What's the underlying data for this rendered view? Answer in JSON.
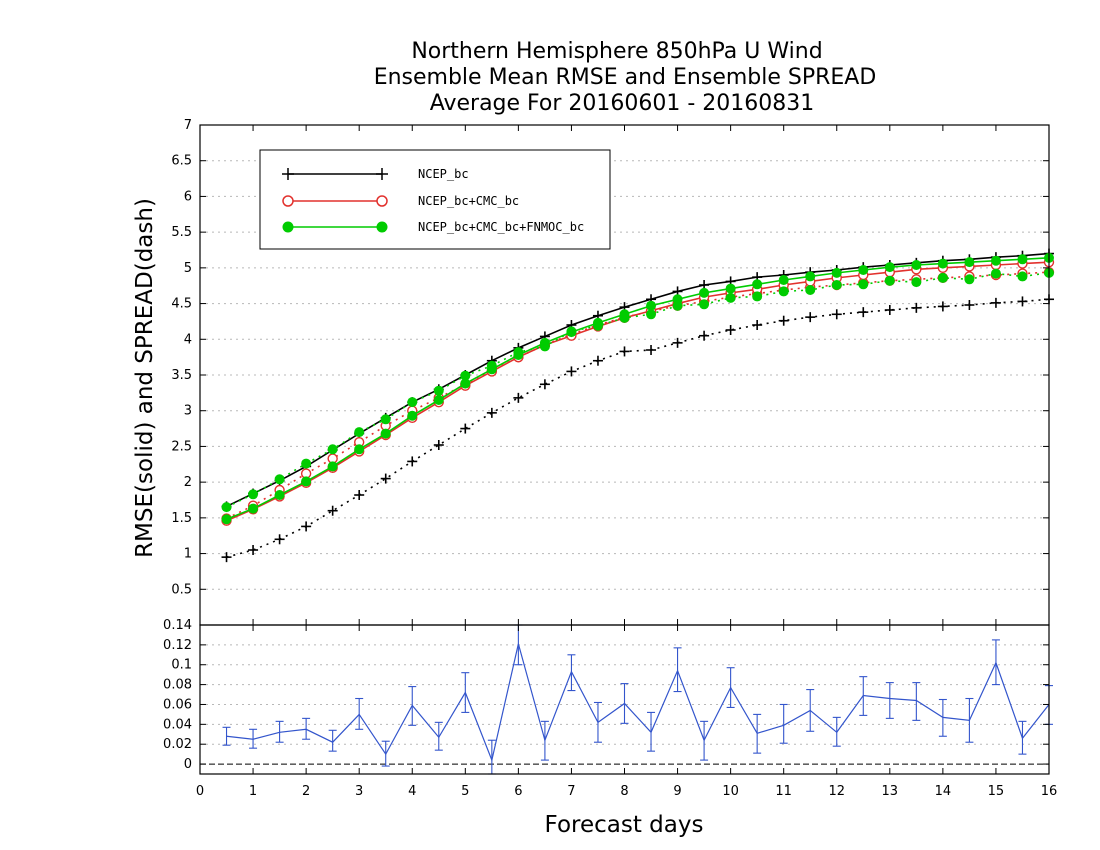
{
  "chart_data": [
    {
      "type": "line",
      "title_lines": [
        "Northern Hemisphere 850hPa U Wind",
        "Ensemble Mean RMSE and Ensemble SPREAD",
        "Average For 20160601 - 20160831"
      ],
      "ylabel": "RMSE(solid) and SPREAD(dash)",
      "xlabel": "Forecast days",
      "xlim": [
        0,
        16
      ],
      "ylim": [
        0,
        7
      ],
      "xticks": [
        "0",
        "1",
        "2",
        "3",
        "4",
        "5",
        "6",
        "7",
        "8",
        "9",
        "10",
        "11",
        "12",
        "13",
        "14",
        "15",
        "16"
      ],
      "yticks": [
        "0.5",
        "1",
        "1.5",
        "2",
        "2.5",
        "3",
        "3.5",
        "4",
        "4.5",
        "5",
        "5.5",
        "6",
        "6.5",
        "7"
      ],
      "grid": true,
      "legend_position": "top-left",
      "x": [
        0.5,
        1,
        1.5,
        2,
        2.5,
        3,
        3.5,
        4,
        4.5,
        5,
        5.5,
        6,
        6.5,
        7,
        7.5,
        8,
        8.5,
        9,
        9.5,
        10,
        10.5,
        11,
        11.5,
        12,
        12.5,
        13,
        13.5,
        14,
        14.5,
        15,
        15.5,
        16
      ],
      "series": [
        {
          "name": "NCEP_bc",
          "color": "#000000",
          "marker": "plus",
          "rmse": [
            1.66,
            1.84,
            2.02,
            2.22,
            2.45,
            2.68,
            2.9,
            3.12,
            3.3,
            3.5,
            3.7,
            3.88,
            4.04,
            4.2,
            4.33,
            4.45,
            4.56,
            4.67,
            4.76,
            4.81,
            4.87,
            4.9,
            4.94,
            4.97,
            5.01,
            5.04,
            5.07,
            5.1,
            5.12,
            5.15,
            5.17,
            5.2
          ],
          "spread": [
            0.95,
            1.05,
            1.2,
            1.38,
            1.6,
            1.82,
            2.05,
            2.29,
            2.52,
            2.75,
            2.97,
            3.18,
            3.37,
            3.55,
            3.7,
            3.83,
            3.85,
            3.95,
            4.05,
            4.13,
            4.2,
            4.26,
            4.31,
            4.35,
            4.38,
            4.41,
            4.44,
            4.46,
            4.48,
            4.51,
            4.53,
            4.56
          ]
        },
        {
          "name": "NCEP_bc+CMC_bc",
          "color": "#e2312d",
          "marker": "circle-open",
          "rmse": [
            1.46,
            1.62,
            1.8,
            1.99,
            2.2,
            2.43,
            2.66,
            2.9,
            3.12,
            3.35,
            3.55,
            3.75,
            3.92,
            4.05,
            4.18,
            4.3,
            4.4,
            4.5,
            4.59,
            4.65,
            4.7,
            4.76,
            4.81,
            4.86,
            4.9,
            4.94,
            4.98,
            5.0,
            5.02,
            5.04,
            5.06,
            5.08
          ],
          "spread": [
            1.49,
            1.67,
            1.89,
            2.12,
            2.33,
            2.56,
            2.79,
            3.0,
            3.18,
            3.37,
            3.56,
            3.75,
            3.92,
            4.07,
            4.2,
            4.31,
            4.39,
            4.47,
            4.53,
            4.59,
            4.64,
            4.69,
            4.73,
            4.76,
            4.79,
            4.82,
            4.84,
            4.86,
            4.88,
            4.9,
            4.92,
            4.94
          ]
        },
        {
          "name": "NCEP_bc+CMC_bc+FNMOC_bc",
          "color": "#00cc00",
          "marker": "circle-filled",
          "rmse": [
            1.48,
            1.63,
            1.82,
            2.01,
            2.22,
            2.46,
            2.68,
            2.93,
            3.15,
            3.38,
            3.58,
            3.78,
            3.95,
            4.1,
            4.23,
            4.35,
            4.47,
            4.56,
            4.65,
            4.71,
            4.77,
            4.83,
            4.88,
            4.93,
            4.97,
            5.01,
            5.04,
            5.06,
            5.08,
            5.1,
            5.12,
            5.14
          ],
          "spread": [
            1.65,
            1.83,
            2.04,
            2.26,
            2.46,
            2.7,
            2.88,
            3.12,
            3.28,
            3.49,
            3.63,
            3.82,
            3.9,
            4.11,
            4.19,
            4.3,
            4.35,
            4.47,
            4.49,
            4.58,
            4.6,
            4.67,
            4.69,
            4.76,
            4.77,
            4.82,
            4.8,
            4.86,
            4.84,
            4.92,
            4.88,
            4.93
          ]
        }
      ]
    },
    {
      "type": "line",
      "title": "",
      "xlim": [
        0,
        16
      ],
      "ylim": [
        -0.01,
        0.14
      ],
      "yticks": [
        "0",
        "0.02",
        "0.04",
        "0.06",
        "0.08",
        "0.1",
        "0.12",
        "0.14"
      ],
      "grid": true,
      "color": "#3355cc",
      "baseline_color": "#000000",
      "x": [
        0.5,
        1,
        1.5,
        2,
        2.5,
        3,
        3.5,
        4,
        4.5,
        5,
        5.5,
        6,
        6.5,
        7,
        7.5,
        8,
        8.5,
        9,
        9.5,
        10,
        10.5,
        11,
        11.5,
        12,
        12.5,
        13,
        13.5,
        14,
        14.5,
        15,
        15.5,
        16
      ],
      "values": [
        0.028,
        0.025,
        0.032,
        0.035,
        0.022,
        0.05,
        0.01,
        0.059,
        0.027,
        0.072,
        0.004,
        0.121,
        0.024,
        0.093,
        0.042,
        0.061,
        0.032,
        0.094,
        0.024,
        0.077,
        0.031,
        0.039,
        0.054,
        0.032,
        0.069,
        0.066,
        0.064,
        0.047,
        0.044,
        0.102,
        0.026,
        0.06
      ],
      "err_low": [
        0.019,
        0.016,
        0.022,
        0.025,
        0.013,
        0.035,
        -0.002,
        0.039,
        0.014,
        0.052,
        -0.012,
        0.1,
        0.004,
        0.074,
        0.022,
        0.041,
        0.013,
        0.073,
        0.004,
        0.057,
        0.011,
        0.021,
        0.033,
        0.018,
        0.049,
        0.046,
        0.044,
        0.028,
        0.022,
        0.08,
        0.01,
        0.04
      ],
      "err_high": [
        0.037,
        0.035,
        0.043,
        0.046,
        0.034,
        0.066,
        0.023,
        0.078,
        0.042,
        0.092,
        0.024,
        0.14,
        0.043,
        0.11,
        0.062,
        0.081,
        0.052,
        0.117,
        0.043,
        0.097,
        0.05,
        0.06,
        0.075,
        0.047,
        0.088,
        0.082,
        0.082,
        0.065,
        0.066,
        0.125,
        0.043,
        0.079
      ]
    }
  ]
}
